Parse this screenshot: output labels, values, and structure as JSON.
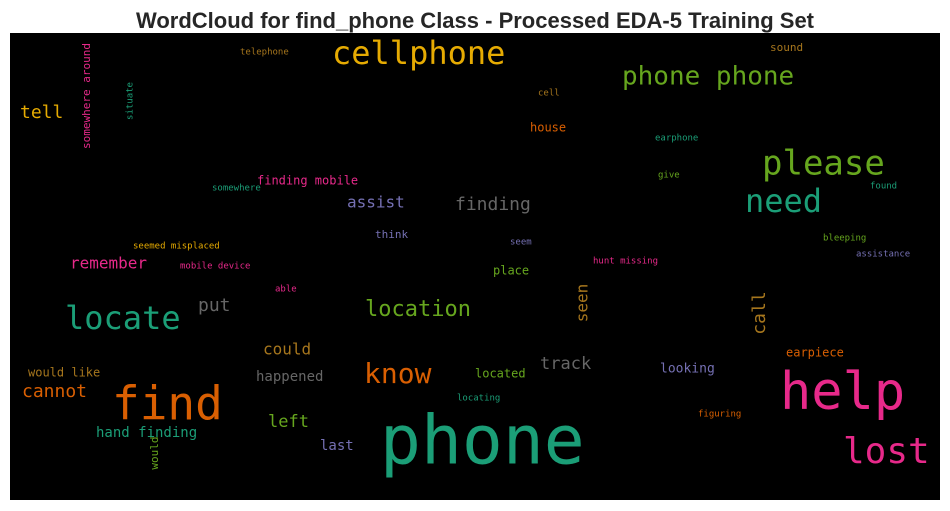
{
  "chart_data": {
    "type": "wordcloud",
    "title": "WordCloud for find_phone Class - Processed EDA-5 Training Set",
    "background": "#000000",
    "words": [
      {
        "text": "phone",
        "color": "#1b9e77"
      },
      {
        "text": "find",
        "color": "#d95f02"
      },
      {
        "text": "help",
        "color": "#e7298a"
      },
      {
        "text": "cellphone",
        "color": "#e6ab02"
      },
      {
        "text": "phone phone",
        "color": "#66a61e"
      },
      {
        "text": "please",
        "color": "#66a61e"
      },
      {
        "text": "need",
        "color": "#1b9e77"
      },
      {
        "text": "lost",
        "color": "#e7298a"
      },
      {
        "text": "locate",
        "color": "#1b9e77"
      },
      {
        "text": "know",
        "color": "#d95f02"
      },
      {
        "text": "location",
        "color": "#66a61e"
      },
      {
        "text": "finding",
        "color": "#666666"
      },
      {
        "text": "assist",
        "color": "#7570b3"
      },
      {
        "text": "remember",
        "color": "#e7298a"
      },
      {
        "text": "tell",
        "color": "#e6ab02"
      },
      {
        "text": "cannot",
        "color": "#d95f02"
      },
      {
        "text": "put",
        "color": "#666666"
      },
      {
        "text": "could",
        "color": "#a6761d"
      },
      {
        "text": "happened",
        "color": "#666666"
      },
      {
        "text": "track",
        "color": "#666666"
      },
      {
        "text": "seen",
        "color": "#a6761d"
      },
      {
        "text": "call",
        "color": "#a6761d"
      },
      {
        "text": "left",
        "color": "#66a61e"
      },
      {
        "text": "last",
        "color": "#7570b3"
      },
      {
        "text": "hand finding",
        "color": "#1b9e77"
      },
      {
        "text": "would like",
        "color": "#a6761d"
      },
      {
        "text": "would",
        "color": "#66a61e"
      },
      {
        "text": "located",
        "color": "#66a61e"
      },
      {
        "text": "locating",
        "color": "#1b9e77"
      },
      {
        "text": "looking",
        "color": "#7570b3"
      },
      {
        "text": "earpiece",
        "color": "#d95f02"
      },
      {
        "text": "figuring",
        "color": "#d95f02"
      },
      {
        "text": "place",
        "color": "#66a61e"
      },
      {
        "text": "hunt missing",
        "color": "#e7298a"
      },
      {
        "text": "seem",
        "color": "#7570b3"
      },
      {
        "text": "think",
        "color": "#7570b3"
      },
      {
        "text": "able",
        "color": "#e7298a"
      },
      {
        "text": "mobile device",
        "color": "#e7298a"
      },
      {
        "text": "seemed misplaced",
        "color": "#e6ab02"
      },
      {
        "text": "finding mobile",
        "color": "#e7298a"
      },
      {
        "text": "somewhere",
        "color": "#1b9e77"
      },
      {
        "text": "give",
        "color": "#66a61e"
      },
      {
        "text": "found",
        "color": "#1b9e77"
      },
      {
        "text": "bleeping",
        "color": "#66a61e"
      },
      {
        "text": "assistance",
        "color": "#7570b3"
      },
      {
        "text": "earphone",
        "color": "#1b9e77"
      },
      {
        "text": "house",
        "color": "#d95f02"
      },
      {
        "text": "cell",
        "color": "#a6761d"
      },
      {
        "text": "sound",
        "color": "#a6761d"
      },
      {
        "text": "telephone",
        "color": "#a6761d"
      },
      {
        "text": "somewhere around",
        "color": "#e7298a"
      },
      {
        "text": "situate",
        "color": "#1b9e77"
      }
    ]
  }
}
